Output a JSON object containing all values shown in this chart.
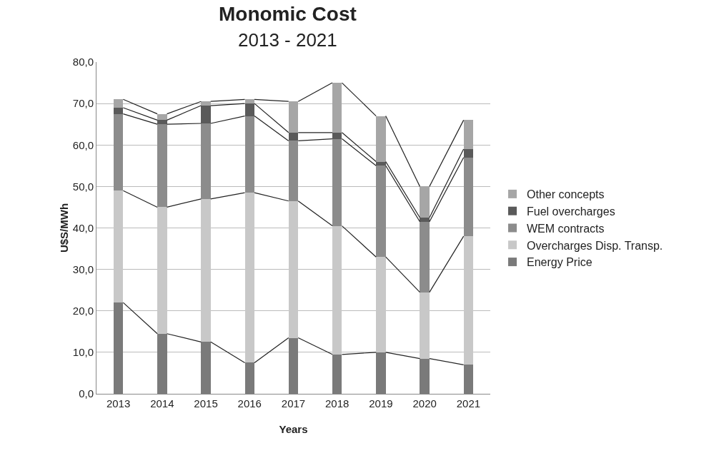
{
  "chart_data": {
    "type": "bar",
    "title": "Monomic Cost",
    "subtitle": "2013 - 2021",
    "xlabel": "Years",
    "ylabel": "U$S/MWh",
    "categories": [
      "2013",
      "2014",
      "2015",
      "2016",
      "2017",
      "2018",
      "2019",
      "2020",
      "2021"
    ],
    "stacked": true,
    "series": [
      {
        "name": "Energy Price",
        "color": "#7a7a7a",
        "values": [
          22,
          14.5,
          12.5,
          7.5,
          13.5,
          9.5,
          10,
          8.5,
          7
        ]
      },
      {
        "name": "Overcharges Disp. Transp.",
        "color": "#c8c8c8",
        "values": [
          27,
          30.5,
          34.5,
          41,
          33,
          31,
          23,
          16,
          31
        ]
      },
      {
        "name": "WEM contracts",
        "color": "#8c8c8c",
        "values": [
          18.5,
          20,
          18.2,
          18.5,
          14.5,
          21,
          22,
          17,
          19
        ]
      },
      {
        "name": "Fuel overcharges",
        "color": "#5a5a5a",
        "values": [
          1.5,
          1,
          4.3,
          3,
          2,
          1.5,
          1,
          1,
          2
        ]
      },
      {
        "name": "Other concepts",
        "color": "#a6a6a6",
        "values": [
          2,
          1.5,
          1,
          1,
          7.5,
          12,
          11,
          7.5,
          7
        ]
      }
    ],
    "ylim": [
      0,
      80
    ],
    "yticks": [
      {
        "value": 0,
        "label": "0,0"
      },
      {
        "value": 10,
        "label": "10,0"
      },
      {
        "value": 20,
        "label": "20,0"
      },
      {
        "value": 30,
        "label": "30,0"
      },
      {
        "value": 40,
        "label": "40,0"
      },
      {
        "value": 50,
        "label": "50,0"
      },
      {
        "value": 60,
        "label": "60,0"
      },
      {
        "value": 70,
        "label": "70,0"
      },
      {
        "value": 80,
        "label": "80,0"
      }
    ],
    "grid": "y",
    "legend": "right"
  }
}
